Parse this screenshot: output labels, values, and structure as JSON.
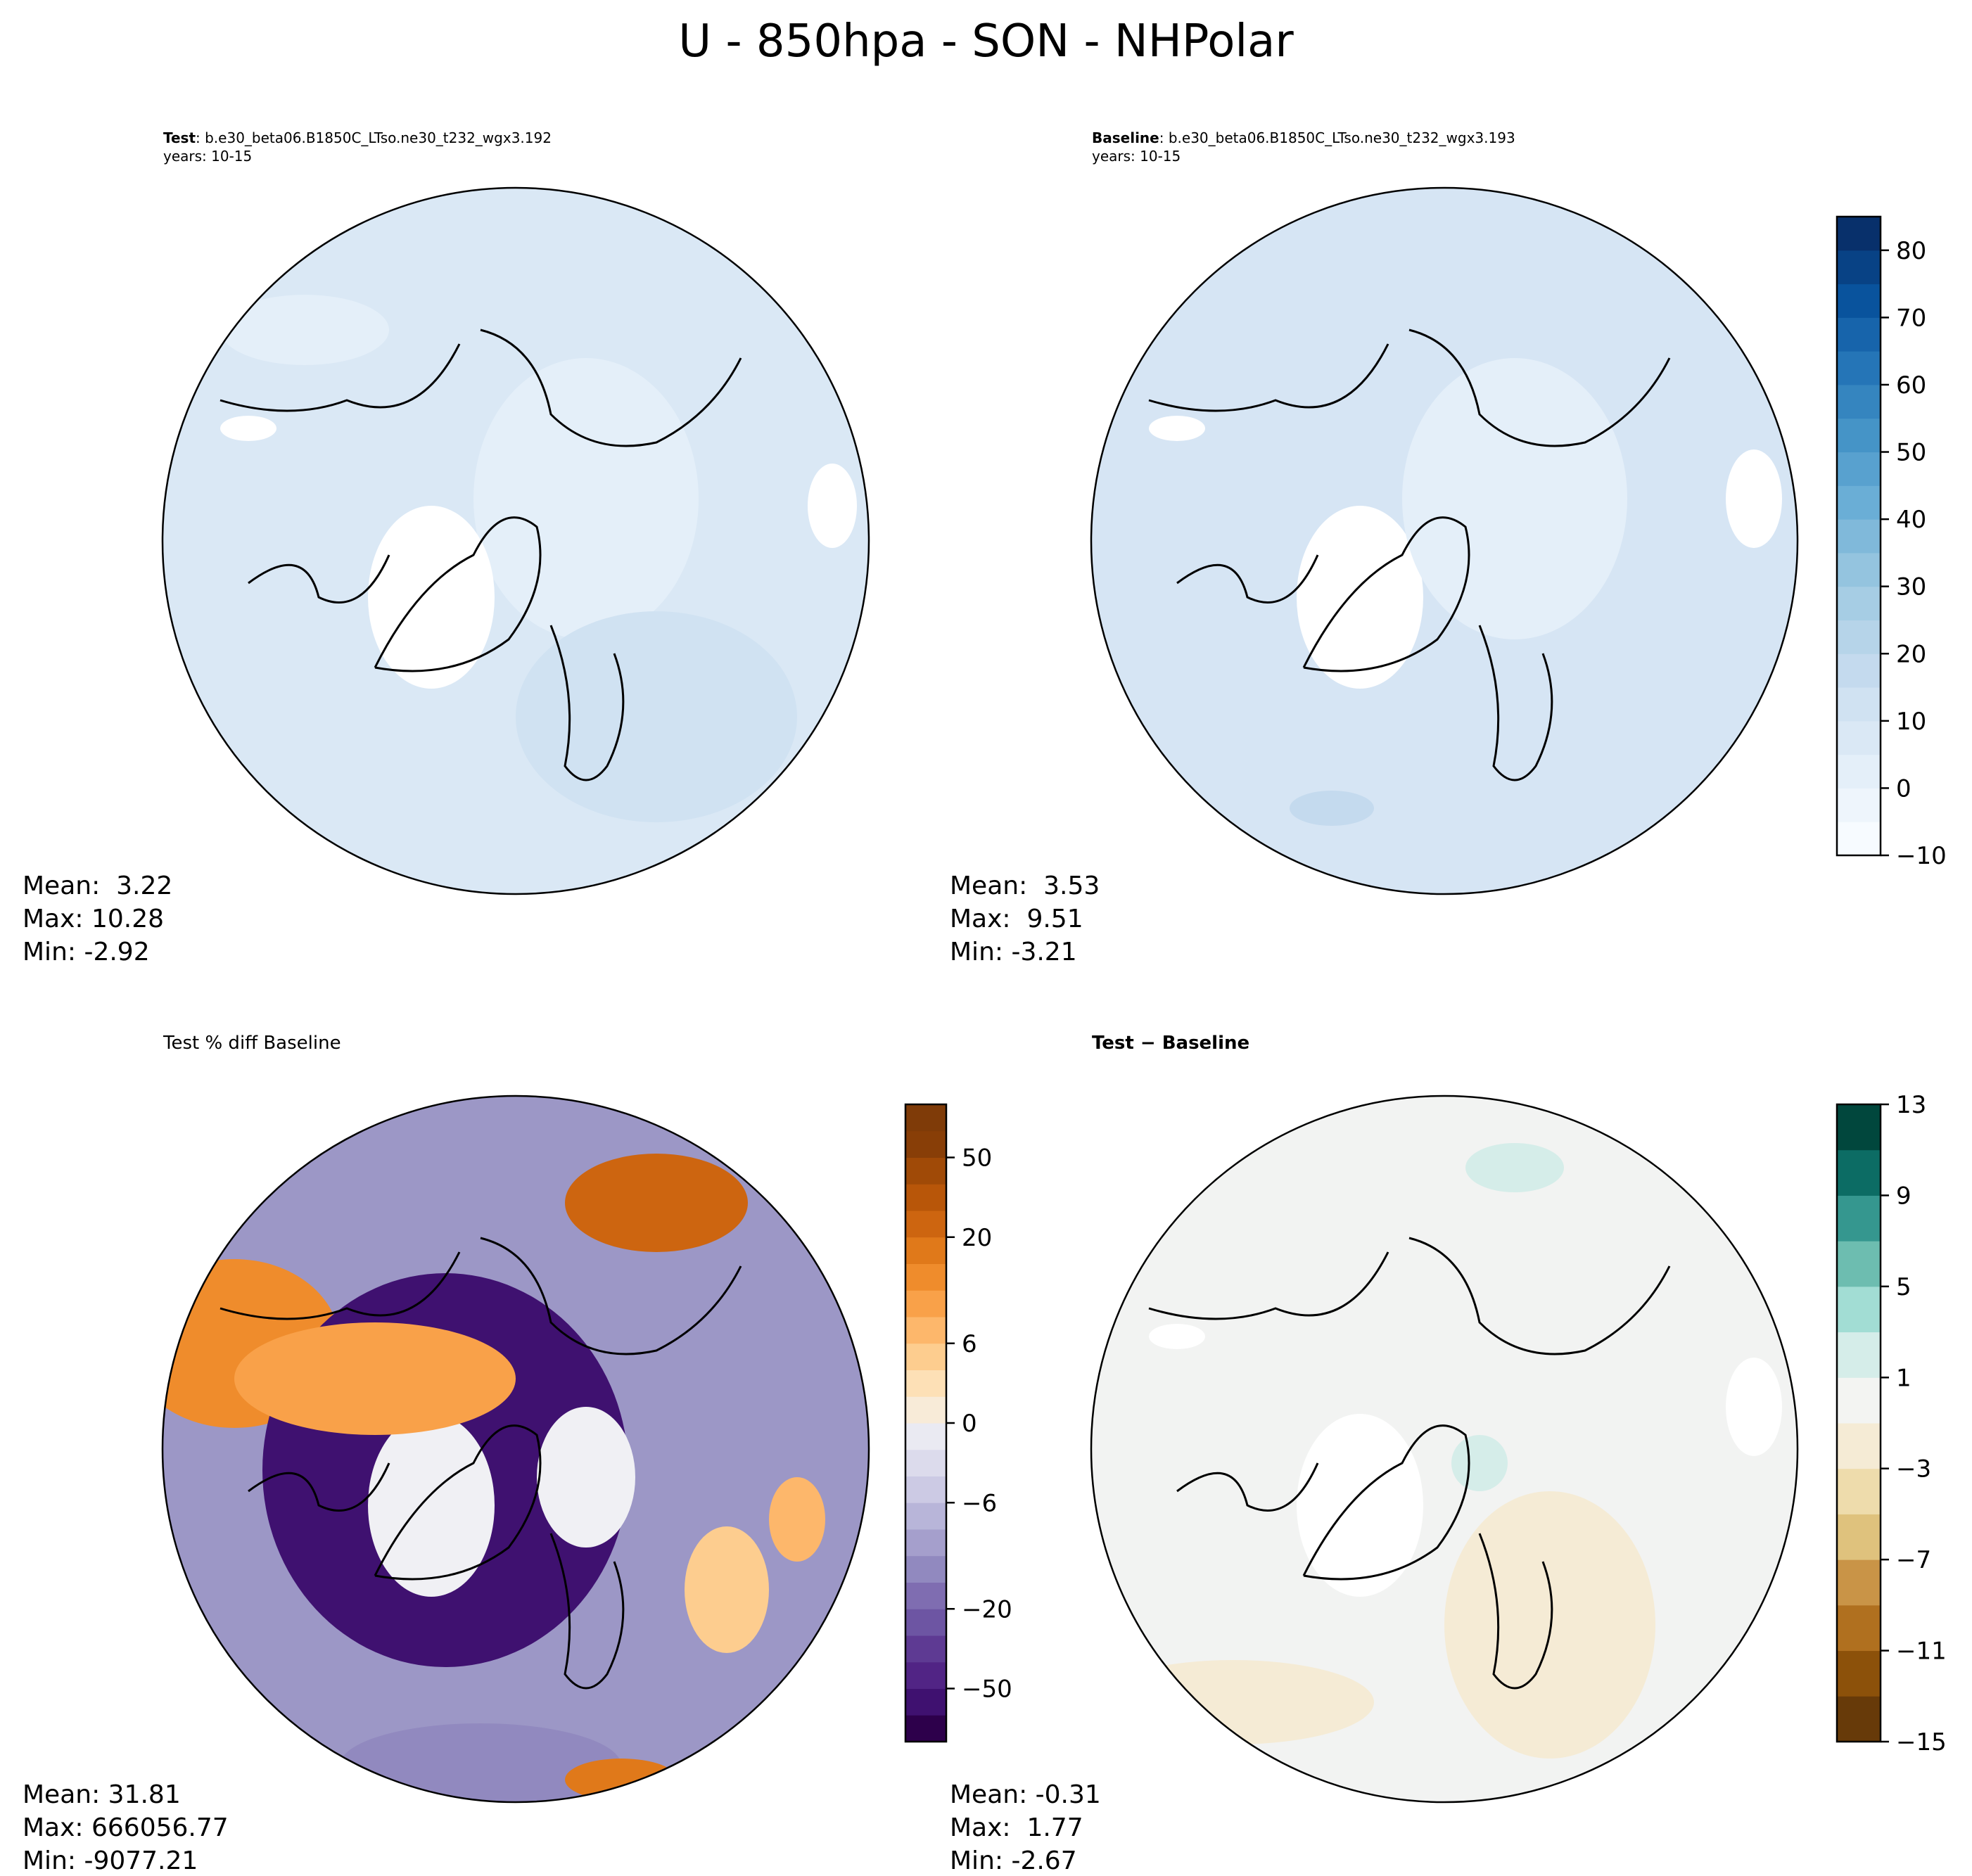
{
  "title": "U - 850hpa - SON - NHPolar",
  "chart_data": {
    "type": "heatmap",
    "title": "U - 850hpa - SON - NHPolar",
    "projection": "north-polar-stereographic",
    "panels": [
      {
        "id": "test",
        "label_bold": "Test",
        "label_rest": ": b.e30_beta06.B1850C_LTso.ne30_t232_wgx3.192",
        "years": "years: 10-15",
        "stats": {
          "mean": "Mean:  3.22",
          "max": "Max: 10.28",
          "min": "Min: -2.92"
        },
        "base_color": "#dae8f5"
      },
      {
        "id": "baseline",
        "label_bold": "Baseline",
        "label_rest": ": b.e30_beta06.B1850C_LTso.ne30_t232_wgx3.193",
        "years": "years: 10-15",
        "stats": {
          "mean": "Mean:  3.53",
          "max": "Max:  9.51",
          "min": "Min: -3.21"
        },
        "base_color": "#d6e5f4"
      },
      {
        "id": "pctdiff",
        "label_plain": "Test % diff Baseline",
        "stats": {
          "mean": "Mean: 31.81",
          "max": "Max: 666056.77",
          "min": "Min: -9077.21"
        },
        "base_color": "#9c97c6"
      },
      {
        "id": "diff",
        "label_bold": "Test − Baseline",
        "stats": {
          "mean": "Mean: -0.31",
          "max": "Max:  1.77",
          "min": "Min: -2.67"
        },
        "base_color": "#f2f3f2"
      }
    ],
    "colorbars": [
      {
        "id": "main",
        "levels": [
          -10,
          -5,
          0,
          5,
          10,
          15,
          20,
          25,
          30,
          35,
          40,
          45,
          50,
          55,
          60,
          65,
          70,
          75,
          80,
          85
        ],
        "ticks": [
          "−10",
          "0",
          "10",
          "20",
          "30",
          "40",
          "50",
          "60",
          "70",
          "80"
        ],
        "tick_values": [
          -10,
          0,
          10,
          20,
          30,
          40,
          50,
          60,
          70,
          80
        ],
        "colors": [
          "#f7fbff",
          "#eef5fc",
          "#e4eff9",
          "#dae8f5",
          "#d0e2f2",
          "#c4daee",
          "#b6d4e9",
          "#a6cde4",
          "#94c4df",
          "#80b9da",
          "#6aaed6",
          "#58a1cf",
          "#4594c7",
          "#3585bf",
          "#2575b7",
          "#1764ab",
          "#09539d",
          "#084285",
          "#08306b"
        ]
      },
      {
        "id": "pct",
        "levels": [
          -100,
          -75,
          -50,
          -40,
          -30,
          -20,
          -15,
          -10,
          -8,
          -6,
          -4,
          -2,
          0,
          2,
          4,
          6,
          8,
          10,
          15,
          20,
          30,
          40,
          50,
          75,
          100
        ],
        "ticks": [
          "−50",
          "−20",
          "−6",
          "0",
          "6",
          "20",
          "50"
        ],
        "tick_values": [
          -50,
          -20,
          -6,
          0,
          6,
          20,
          50
        ],
        "colors": [
          "#2d004b",
          "#3f1170",
          "#512485",
          "#5e3a93",
          "#6d55a3",
          "#7f6db1",
          "#9189bf",
          "#a59fcc",
          "#b8b5d9",
          "#cccae4",
          "#dcdbec",
          "#eaeaf2",
          "#f8ebd8",
          "#fde0b6",
          "#fdcd8f",
          "#fdb76b",
          "#f9a149",
          "#ef8c2c",
          "#e0791a",
          "#cd6510",
          "#b85609",
          "#a04a07",
          "#883e07",
          "#7f3b08"
        ]
      },
      {
        "id": "diff",
        "levels": [
          -15,
          -13,
          -11,
          -9,
          -7,
          -5,
          -3,
          -1,
          1,
          3,
          5,
          7,
          9,
          11,
          13
        ],
        "ticks": [
          "−15",
          "−11",
          "−7",
          "−3",
          "1",
          "5",
          "9",
          "13"
        ],
        "tick_values": [
          -15,
          -11,
          -7,
          -3,
          1,
          5,
          9,
          13
        ],
        "colors": [
          "#673a09",
          "#8c510a",
          "#b0701f",
          "#c99447",
          "#dfc27d",
          "#eedcac",
          "#f5ebd5",
          "#f3f4f2",
          "#d5ede9",
          "#a2ddd4",
          "#6dbdb0",
          "#35978f",
          "#0c6c64",
          "#01473d"
        ]
      }
    ]
  }
}
